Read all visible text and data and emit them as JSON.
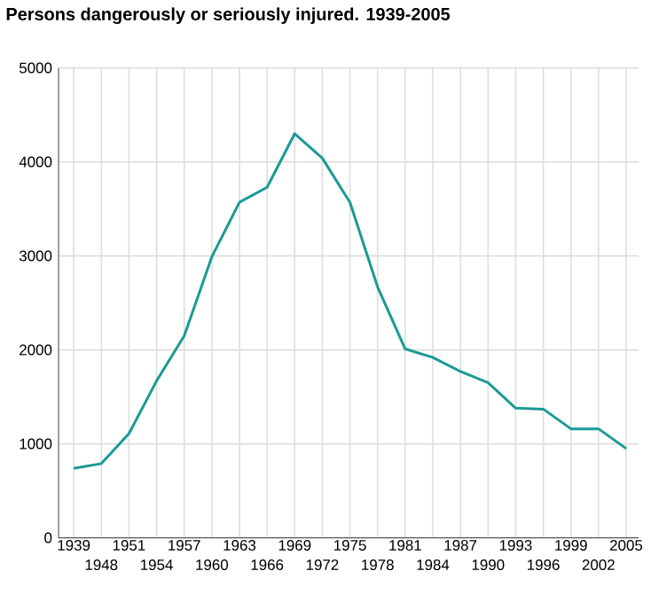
{
  "chart_data": {
    "type": "line",
    "title": "Persons dangerously or seriously injured. 1939-2005",
    "categories": [
      "1939",
      "1948",
      "1951",
      "1954",
      "1957",
      "1960",
      "1963",
      "1966",
      "1969",
      "1972",
      "1975",
      "1978",
      "1981",
      "1984",
      "1987",
      "1990",
      "1993",
      "1996",
      "1999",
      "2002",
      "2005"
    ],
    "values": [
      740,
      790,
      1110,
      1670,
      2150,
      2990,
      3570,
      3730,
      4300,
      4040,
      3570,
      2670,
      2010,
      1920,
      1770,
      1650,
      1380,
      1370,
      1160,
      1160,
      950
    ],
    "color": "#1a9a96",
    "ylim": [
      0,
      5000
    ],
    "yticks": [
      0,
      1000,
      2000,
      3000,
      4000,
      5000
    ],
    "grid": true
  }
}
